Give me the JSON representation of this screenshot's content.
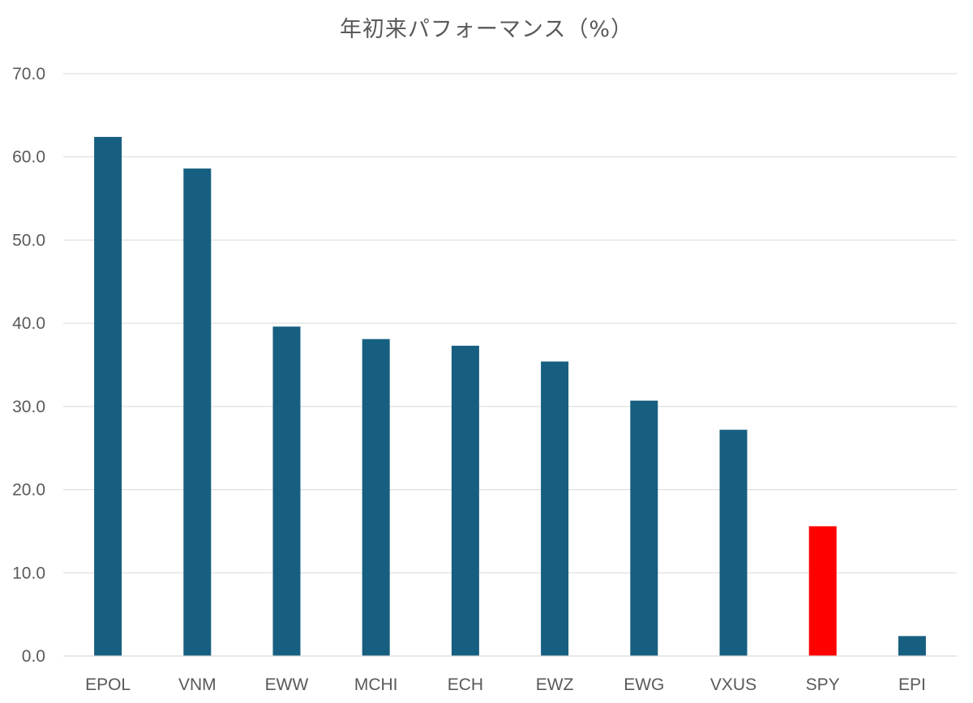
{
  "chart_data": {
    "type": "bar",
    "title": "年初来パフォーマンス（%）",
    "xlabel": "",
    "ylabel": "",
    "categories": [
      "EPOL",
      "VNM",
      "EWW",
      "MCHI",
      "ECH",
      "EWZ",
      "EWG",
      "VXUS",
      "SPY",
      "EPI"
    ],
    "values": [
      62.4,
      58.6,
      39.6,
      38.1,
      37.3,
      35.4,
      30.7,
      27.2,
      15.6,
      2.4
    ],
    "ylim": [
      0,
      70
    ],
    "yticks": [
      "0.0",
      "10.0",
      "20.0",
      "30.0",
      "40.0",
      "50.0",
      "60.0",
      "70.0"
    ],
    "grid": true,
    "legend": "none",
    "colors": {
      "default": "#175f80",
      "highlight": "#ff0000",
      "highlight_category": "SPY"
    }
  }
}
